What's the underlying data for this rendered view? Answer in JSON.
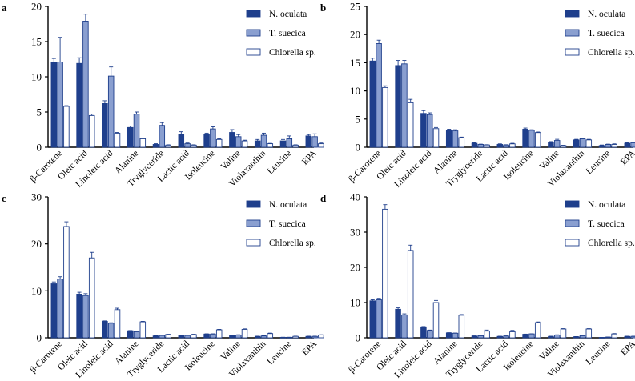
{
  "figure": {
    "colors": {
      "n_oculata": "#1f3f8c",
      "t_suecica": "#8a9fd0",
      "chlorella": "#ffffff",
      "axis": "#000000",
      "stroke": "#1f3f8c"
    }
  },
  "chart_data": [
    {
      "panel_label": "a",
      "type": "bar",
      "categories": [
        "β-Carotene",
        "Oleic acid",
        "Linoleic acid",
        "Alanine",
        "Tryglyceride",
        "Lactic acid",
        "Isoleucine",
        "Valine",
        "Violaxanthin",
        "Leucine",
        "EPA"
      ],
      "series": [
        {
          "name": "N. oculata",
          "values": [
            12.0,
            11.9,
            6.2,
            2.8,
            0.4,
            1.8,
            1.8,
            2.1,
            0.9,
            0.9,
            1.6
          ],
          "errors": [
            0.6,
            0.8,
            0.4,
            0.2,
            0.1,
            0.4,
            0.2,
            0.4,
            0.2,
            0.2,
            0.2
          ]
        },
        {
          "name": "T. suecica",
          "values": [
            12.1,
            17.9,
            10.1,
            4.7,
            3.1,
            0.5,
            2.6,
            1.5,
            1.7,
            1.2,
            1.5
          ],
          "errors": [
            3.5,
            1.0,
            1.3,
            0.3,
            0.4,
            0.1,
            0.3,
            0.3,
            0.3,
            0.4,
            0.4
          ]
        },
        {
          "name": "Chlorella sp.",
          "values": [
            5.8,
            4.5,
            2.0,
            1.2,
            0.3,
            0.3,
            1.1,
            0.9,
            0.5,
            0.3,
            0.5
          ],
          "errors": [
            0.1,
            0.2,
            0.1,
            0.1,
            0.05,
            0.05,
            0.1,
            0.1,
            0.05,
            0.05,
            0.1
          ]
        }
      ],
      "ylim": [
        0,
        20
      ],
      "yticks": [
        0,
        5,
        10,
        15,
        20
      ],
      "xlabel": "",
      "ylabel": ""
    },
    {
      "panel_label": "b",
      "type": "bar",
      "categories": [
        "β-Carotene",
        "Oleic acid",
        "Linoleic acid",
        "Alanine",
        "Tryglyceride",
        "Lactic acid",
        "Isoleucine",
        "Valine",
        "Violaxanthin",
        "Leucine",
        "EPA"
      ],
      "series": [
        {
          "name": "N. oculata",
          "values": [
            15.3,
            14.5,
            6.0,
            3.0,
            0.7,
            0.5,
            3.2,
            0.8,
            1.3,
            0.3,
            0.7
          ],
          "errors": [
            0.5,
            0.9,
            0.5,
            0.2,
            0.1,
            0.1,
            0.2,
            0.2,
            0.1,
            0.1,
            0.1
          ]
        },
        {
          "name": "T. suecica",
          "values": [
            18.4,
            14.8,
            5.8,
            2.9,
            0.5,
            0.4,
            3.0,
            1.2,
            1.5,
            0.5,
            0.8
          ],
          "errors": [
            0.6,
            0.6,
            0.3,
            0.2,
            0.05,
            0.05,
            0.1,
            0.2,
            0.1,
            0.05,
            0.05
          ]
        },
        {
          "name": "Chlorella sp.",
          "values": [
            10.6,
            7.9,
            3.3,
            1.7,
            0.4,
            0.6,
            2.6,
            0.3,
            1.3,
            0.5,
            0.8
          ],
          "errors": [
            0.3,
            0.6,
            0.2,
            0.1,
            0.05,
            0.1,
            0.1,
            0.05,
            0.1,
            0.1,
            0.05
          ]
        }
      ],
      "ylim": [
        0,
        25
      ],
      "yticks": [
        0,
        5,
        10,
        15,
        20,
        25
      ],
      "xlabel": "",
      "ylabel": ""
    },
    {
      "panel_label": "c",
      "type": "bar",
      "categories": [
        "β-Carotene",
        "Oleic acid",
        "Linoleic acid",
        "Alanine",
        "Tryglyceride",
        "Lactic acid",
        "Isoleucine",
        "Valine",
        "Violaxanthin",
        "Leucine",
        "EPA"
      ],
      "series": [
        {
          "name": "N. oculata",
          "values": [
            11.5,
            9.3,
            3.5,
            1.5,
            0.4,
            0.5,
            0.8,
            0.5,
            0.3,
            0.1,
            0.3
          ],
          "errors": [
            0.4,
            0.4,
            0.1,
            0.05,
            0.05,
            0.05,
            0.05,
            0.05,
            0.05,
            0.02,
            0.05
          ]
        },
        {
          "name": "T. suecica",
          "values": [
            12.5,
            9.0,
            3.1,
            1.3,
            0.5,
            0.5,
            0.8,
            0.6,
            0.4,
            0.1,
            0.3
          ],
          "errors": [
            0.5,
            0.4,
            0.1,
            0.05,
            0.05,
            0.05,
            0.05,
            0.05,
            0.05,
            0.02,
            0.05
          ]
        },
        {
          "name": "Chlorella sp.",
          "values": [
            23.7,
            17.0,
            6.0,
            3.4,
            0.7,
            0.7,
            1.7,
            1.8,
            0.9,
            0.3,
            0.6
          ],
          "errors": [
            1.0,
            1.2,
            0.3,
            0.1,
            0.05,
            0.05,
            0.1,
            0.1,
            0.1,
            0.05,
            0.05
          ]
        }
      ],
      "ylim": [
        0,
        30
      ],
      "yticks": [
        0,
        10,
        20,
        30
      ],
      "xlabel": "",
      "ylabel": ""
    },
    {
      "panel_label": "d",
      "type": "bar",
      "categories": [
        "β-Carotene",
        "Oleic acid",
        "Linoleic acid",
        "Alanine",
        "Tryglyceride",
        "Lactic acid",
        "Isoleucine",
        "Valine",
        "Violaxanthin",
        "Leucine",
        "EPA"
      ],
      "series": [
        {
          "name": "N. oculata",
          "values": [
            10.5,
            8.1,
            3.1,
            1.4,
            0.5,
            0.4,
            1.0,
            0.4,
            0.3,
            0.1,
            0.4
          ],
          "errors": [
            0.3,
            0.4,
            0.1,
            0.05,
            0.05,
            0.05,
            0.05,
            0.05,
            0.05,
            0.02,
            0.05
          ]
        },
        {
          "name": "T. suecica",
          "values": [
            10.8,
            6.5,
            2.1,
            1.3,
            0.6,
            0.5,
            1.1,
            0.8,
            0.6,
            0.2,
            0.4
          ],
          "errors": [
            0.4,
            0.3,
            0.1,
            0.05,
            0.05,
            0.05,
            0.05,
            0.05,
            0.05,
            0.02,
            0.05
          ]
        },
        {
          "name": "Chlorella sp.",
          "values": [
            36.5,
            24.8,
            10.0,
            6.4,
            1.9,
            1.7,
            4.3,
            2.5,
            2.5,
            1.1,
            1.5
          ],
          "errors": [
            1.3,
            1.5,
            0.6,
            0.2,
            0.3,
            0.4,
            0.2,
            0.1,
            0.1,
            0.1,
            0.2
          ]
        }
      ],
      "ylim": [
        0,
        40
      ],
      "yticks": [
        0,
        10,
        20,
        30,
        40
      ],
      "xlabel": "",
      "ylabel": ""
    }
  ]
}
